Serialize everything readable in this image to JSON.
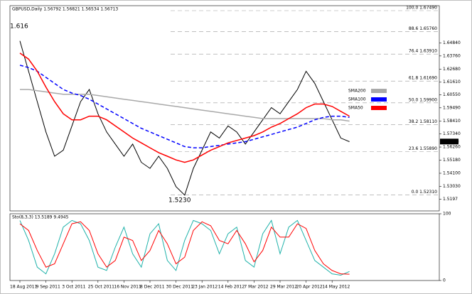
{
  "chart_data": [
    {
      "type": "line",
      "title": "GBPUSD,Daily 1.56792 1.56821 1.56534 1.56713",
      "categories": [
        "18 Aug 2011",
        null,
        null,
        "9 Sep 2011",
        null,
        null,
        "3 Oct 2011",
        null,
        null,
        "25 Oct 2011",
        null,
        null,
        "16 Nov 2011",
        null,
        null,
        "8 Dec 2011",
        null,
        null,
        "30 Dec 2011",
        null,
        null,
        "23 Jan 2012",
        null,
        null,
        "14 Feb 2012",
        null,
        null,
        "7 Mar 2012",
        null,
        null,
        "29 Mar 2012",
        null,
        null,
        "20 Apr 2012",
        null,
        null,
        "14 May 2012",
        null,
        null
      ],
      "series": [
        {
          "color": "#000000",
          "values": [
            1.65,
            1.625,
            1.6,
            1.575,
            1.555,
            1.56,
            1.58,
            1.6,
            1.61,
            1.59,
            1.575,
            1.565,
            1.555,
            1.565,
            1.55,
            1.545,
            1.555,
            1.545,
            1.53,
            1.523,
            1.545,
            1.56,
            1.575,
            1.57,
            1.58,
            1.575,
            1.565,
            1.575,
            1.585,
            1.595,
            1.59,
            1.6,
            1.61,
            1.625,
            1.615,
            1.6,
            1.585,
            1.57,
            1.567
          ]
        },
        {
          "name": "SMA200",
          "color": "#a9a9a9",
          "values": [
            1.61,
            1.61,
            1.609,
            1.608,
            1.607,
            1.606,
            1.606,
            1.606,
            1.606,
            1.605,
            1.604,
            1.603,
            1.602,
            1.601,
            1.6,
            1.599,
            1.598,
            1.597,
            1.596,
            1.595,
            1.594,
            1.593,
            1.592,
            1.591,
            1.59,
            1.589,
            1.588,
            1.587,
            1.586,
            1.586,
            1.586,
            1.586,
            1.586,
            1.586,
            1.586,
            1.586,
            1.585,
            1.585,
            1.584
          ]
        },
        {
          "name": "SMA100",
          "color": "#0000ff",
          "dashed": true,
          "values": [
            1.63,
            1.628,
            1.625,
            1.62,
            1.615,
            1.61,
            1.607,
            1.605,
            1.602,
            1.598,
            1.594,
            1.59,
            1.586,
            1.582,
            1.578,
            1.575,
            1.572,
            1.569,
            1.566,
            1.563,
            1.562,
            1.562,
            1.563,
            1.564,
            1.565,
            1.566,
            1.567,
            1.569,
            1.571,
            1.573,
            1.575,
            1.577,
            1.579,
            1.582,
            1.585,
            1.587,
            1.588,
            1.588,
            1.587
          ]
        },
        {
          "name": "SMA50",
          "color": "#ff0000",
          "values": [
            1.64,
            1.635,
            1.625,
            1.612,
            1.6,
            1.59,
            1.585,
            1.585,
            1.588,
            1.588,
            1.585,
            1.58,
            1.575,
            1.57,
            1.566,
            1.562,
            1.558,
            1.555,
            1.552,
            1.55,
            1.552,
            1.556,
            1.56,
            1.563,
            1.566,
            1.568,
            1.57,
            1.572,
            1.575,
            1.579,
            1.582,
            1.586,
            1.59,
            1.595,
            1.598,
            1.598,
            1.596,
            1.592,
            1.588
          ]
        }
      ],
      "ylim": [
        1.51,
        1.679
      ],
      "yticks": [
        1.5197,
        {
          "value": 1.5303,
          "label": "1.53030"
        },
        {
          "value": 1.541,
          "label": "1.54100"
        },
        {
          "value": 1.5518,
          "label": "1.55180"
        },
        {
          "value": 1.5626,
          "label": "1.56260"
        },
        {
          "value": 1.5734,
          "label": "1.57340"
        },
        {
          "value": 1.5841,
          "label": "1.58410"
        },
        {
          "value": 1.5949,
          "label": "1.59490"
        },
        {
          "value": 1.6055,
          "label": "1.60550"
        },
        {
          "value": 1.6161,
          "label": "1.61610"
        },
        {
          "value": 1.6268,
          "label": "1.62680"
        },
        {
          "value": 1.6376,
          "label": "1.63760"
        },
        {
          "value": 1.6484,
          "label": "1.64840"
        }
      ],
      "last_price": 1.56713,
      "fib_levels": [
        {
          "value": 1.6749,
          "label": "100.0 1.67490"
        },
        {
          "value": 1.6576,
          "label": "88.6 1.65760"
        },
        {
          "value": 1.6391,
          "label": "76.4 1.63910"
        },
        {
          "value": 1.6169,
          "label": "61.8 1.61690"
        },
        {
          "value": 1.599,
          "label": "50.0 1.59900"
        },
        {
          "value": 1.5811,
          "label": "38.2 1.58110"
        },
        {
          "value": 1.5589,
          "label": "23.6 1.55890"
        },
        {
          "value": 1.5231,
          "label": "0.0 1.52310"
        }
      ],
      "annotations": [
        "1.5230",
        "1.616"
      ]
    },
    {
      "type": "line",
      "title": "Sto(8,3,3) 13.5189 9.4945",
      "ylim": [
        0,
        100
      ],
      "yticks": [
        0,
        100
      ],
      "series": [
        {
          "color": "#20b2aa",
          "values": [
            90,
            60,
            20,
            10,
            40,
            80,
            90,
            85,
            60,
            20,
            15,
            50,
            80,
            40,
            20,
            70,
            85,
            30,
            15,
            60,
            90,
            85,
            75,
            40,
            70,
            80,
            30,
            20,
            70,
            90,
            40,
            80,
            90,
            60,
            30,
            20,
            10,
            8,
            13.5
          ]
        },
        {
          "color": "#ff0000",
          "values": [
            85,
            75,
            45,
            20,
            25,
            55,
            85,
            88,
            75,
            40,
            20,
            30,
            65,
            60,
            30,
            45,
            75,
            55,
            25,
            35,
            75,
            88,
            82,
            60,
            55,
            75,
            55,
            28,
            45,
            80,
            65,
            65,
            85,
            78,
            45,
            25,
            15,
            10,
            9.5
          ]
        }
      ]
    }
  ]
}
